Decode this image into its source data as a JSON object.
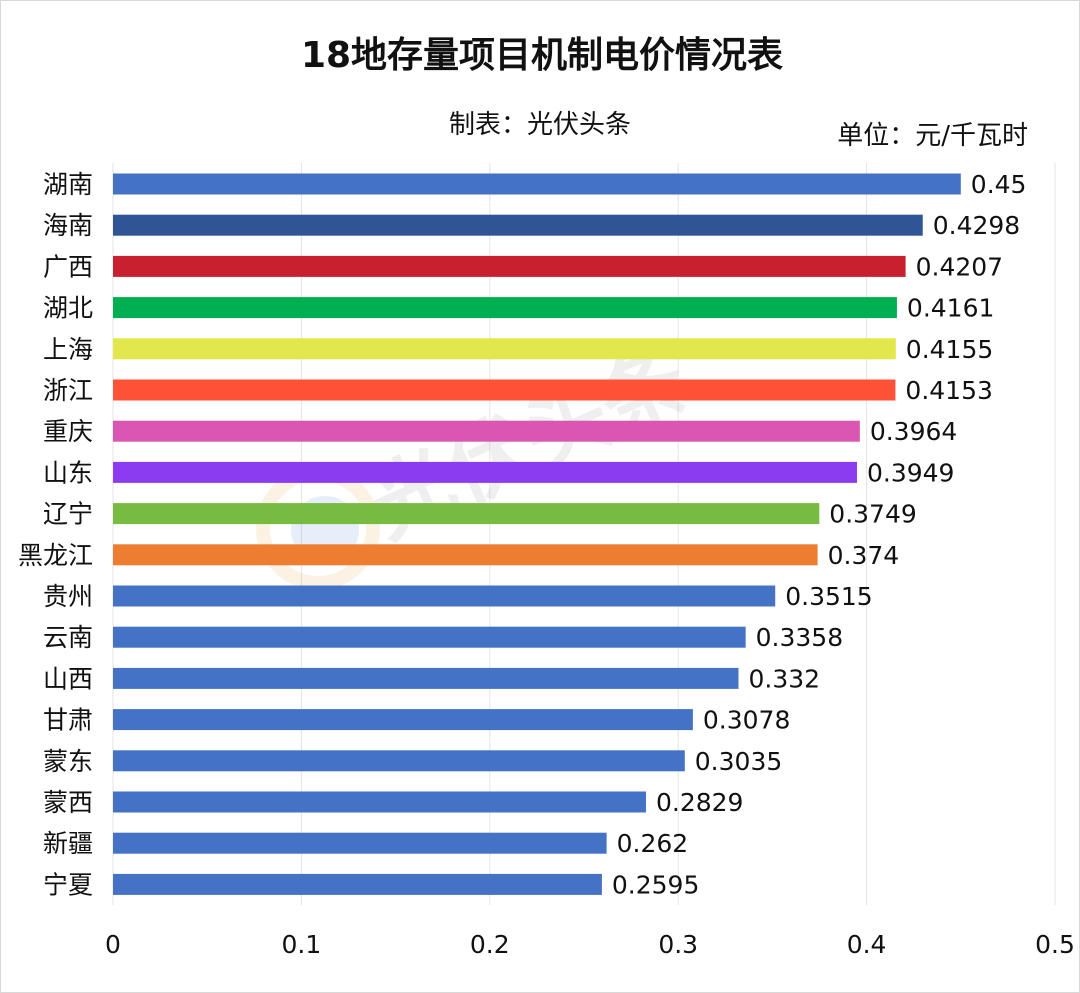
{
  "chart_data": {
    "type": "bar",
    "orientation": "horizontal",
    "title": "18地存量项目机制电价情况表",
    "subtitle": "制表：光伏头条",
    "unit": "单位：元/千瓦时",
    "watermark": "光伏头条",
    "categories": [
      "湖南",
      "海南",
      "广西",
      "湖北",
      "上海",
      "浙江",
      "重庆",
      "山东",
      "辽宁",
      "黑龙江",
      "贵州",
      "云南",
      "山西",
      "甘肃",
      "蒙东",
      "蒙西",
      "新疆",
      "宁夏"
    ],
    "values": [
      0.45,
      0.4298,
      0.4207,
      0.4161,
      0.4155,
      0.4153,
      0.3964,
      0.3949,
      0.3749,
      0.374,
      0.3515,
      0.3358,
      0.332,
      0.3078,
      0.3035,
      0.2829,
      0.262,
      0.2595
    ],
    "value_labels": [
      "0.45",
      "0.4298",
      "0.4207",
      "0.4161",
      "0.4155",
      "0.4153",
      "0.3964",
      "0.3949",
      "0.3749",
      "0.374",
      "0.3515",
      "0.3358",
      "0.332",
      "0.3078",
      "0.3035",
      "0.2829",
      "0.262",
      "0.2595"
    ],
    "colors": [
      "#4472C4",
      "#2F5597",
      "#C9202F",
      "#00B050",
      "#E2E84C",
      "#FF5136",
      "#D957B3",
      "#8B3CF0",
      "#77BB41",
      "#ED7D31",
      "#4472C4",
      "#4472C4",
      "#4472C4",
      "#4472C4",
      "#4472C4",
      "#4472C4",
      "#4472C4",
      "#4472C4"
    ],
    "xlim": [
      0,
      0.5
    ],
    "x_ticks": [
      "0",
      "0.1",
      "0.2",
      "0.3",
      "0.4",
      "0.5"
    ],
    "grid": true,
    "legend": "none"
  }
}
